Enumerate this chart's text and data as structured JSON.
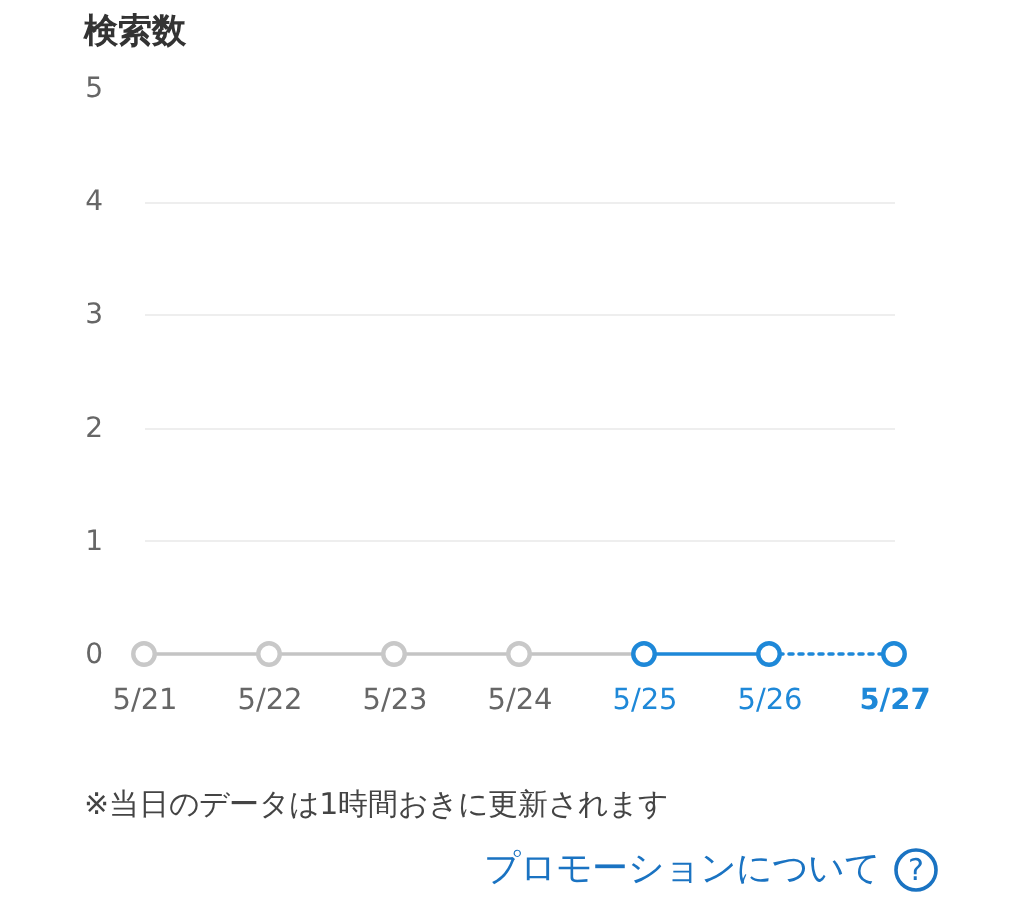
{
  "chart_data": {
    "type": "line",
    "title": "検索数",
    "categories": [
      "5/21",
      "5/22",
      "5/23",
      "5/24",
      "5/25",
      "5/26",
      "5/27"
    ],
    "series": [
      {
        "color": "#c4c4c4",
        "values": [
          0,
          0,
          0,
          0,
          0,
          null,
          null
        ],
        "marker": "none",
        "line_style": "solid"
      },
      {
        "color": "#1e88d8",
        "values": [
          null,
          null,
          null,
          null,
          0,
          0,
          null
        ],
        "marker": "none",
        "line_style": "solid"
      },
      {
        "color": "#1e88d8",
        "values": [
          null,
          null,
          null,
          null,
          null,
          0,
          0
        ],
        "marker": "none",
        "line_style": "dotted"
      },
      {
        "type": "scatter",
        "values": [
          0,
          0,
          0,
          0,
          0,
          0,
          0
        ],
        "colors": [
          "#c8c8c8",
          "#c8c8c8",
          "#c8c8c8",
          "#c8c8c8",
          "#1e88d8",
          "#1e88d8",
          "#1e88d8"
        ],
        "marker": "circle"
      }
    ],
    "ylim": [
      0,
      5
    ],
    "yticks": [
      0,
      1,
      2,
      3,
      4,
      5
    ],
    "grid": "y",
    "annotations": [
      "※当日のデータは1時間おきに更新されます",
      "プロモーションについて",
      "?"
    ]
  }
}
